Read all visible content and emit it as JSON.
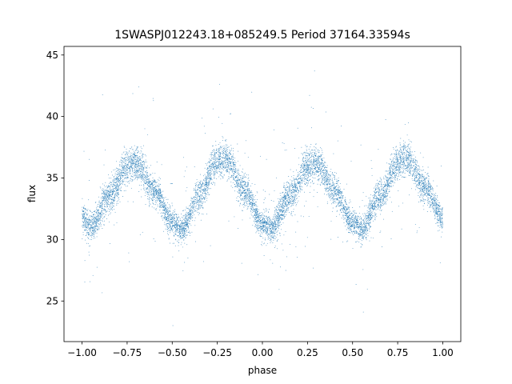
{
  "chart_data": {
    "type": "scatter",
    "title": "1SWASPJ012243.18+085249.5 Period 37164.33594s",
    "xlabel": "phase",
    "ylabel": "flux",
    "xlim": [
      -1.1,
      1.1
    ],
    "ylim": [
      21.7,
      45.7
    ],
    "xticks": [
      -1.0,
      -0.75,
      -0.5,
      -0.25,
      0.0,
      0.25,
      0.5,
      0.75,
      1.0
    ],
    "xtick_labels": [
      "−1.00",
      "−0.75",
      "−0.50",
      "−0.25",
      "0.00",
      "0.25",
      "0.50",
      "0.75",
      "1.00"
    ],
    "yticks": [
      25,
      30,
      35,
      40,
      45
    ],
    "ytick_labels": [
      "25",
      "30",
      "35",
      "40",
      "45"
    ],
    "grid": false,
    "marker_color": "#1f77b4",
    "model": {
      "description_values": {
        "mean_flux": 33.5,
        "amplitude_primary": 2.7,
        "amplitude_secondary": 3.0,
        "min_flux_at_phase": [
          -0.95,
          -0.45,
          0.05,
          0.55
        ],
        "max_flux_at_phase": [
          -0.7,
          -0.2,
          0.3,
          0.8
        ],
        "peak_flux_primary": 36.2,
        "peak_flux_secondary": 36.6,
        "trough_flux": 30.8
      },
      "summary_points": {
        "x": [
          -1.0,
          -0.95,
          -0.85,
          -0.75,
          -0.7,
          -0.6,
          -0.5,
          -0.45,
          -0.35,
          -0.25,
          -0.2,
          -0.1,
          0.0,
          0.05,
          0.15,
          0.25,
          0.3,
          0.4,
          0.5,
          0.55,
          0.65,
          0.75,
          0.8,
          0.9,
          1.0
        ],
        "y": [
          31.8,
          31.0,
          33.5,
          35.9,
          36.2,
          34.0,
          31.4,
          30.8,
          33.5,
          36.3,
          36.6,
          34.0,
          31.3,
          30.9,
          33.5,
          35.9,
          36.2,
          34.0,
          31.4,
          30.8,
          33.5,
          36.3,
          36.6,
          34.2,
          31.8
        ]
      },
      "point_count": 9000,
      "scatter_std": 0.55,
      "outlier_fraction": 0.035,
      "outlier_range": [
        23.0,
        44.0
      ]
    }
  }
}
